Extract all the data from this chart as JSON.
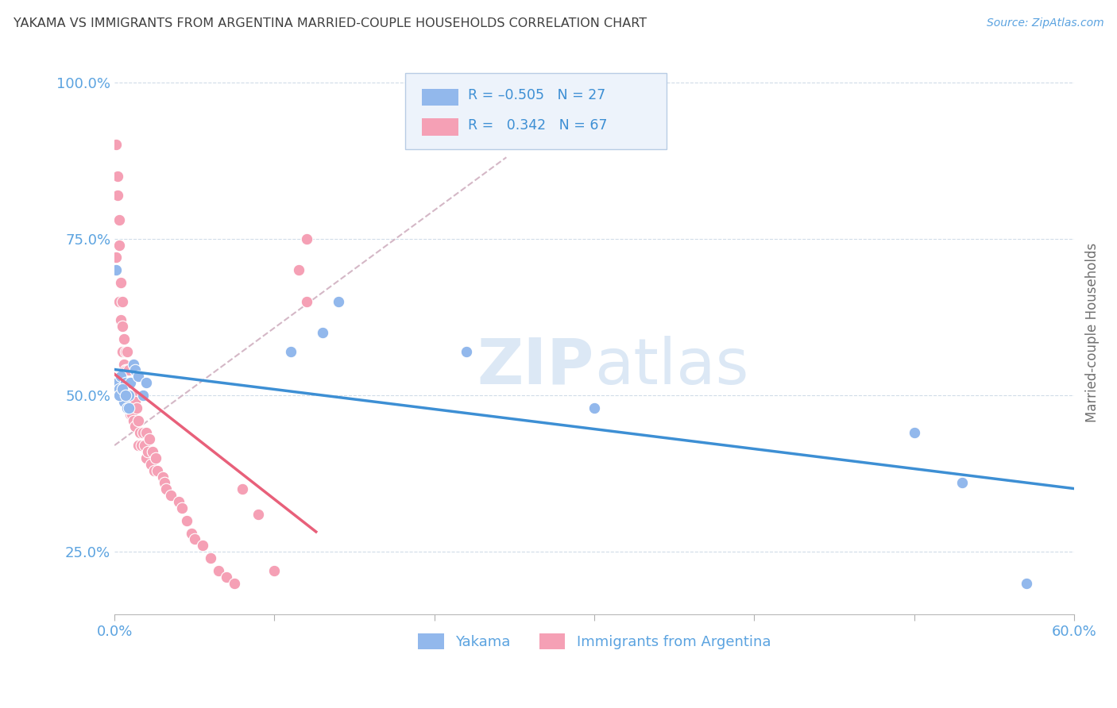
{
  "title": "YAKAMA VS IMMIGRANTS FROM ARGENTINA MARRIED-COUPLE HOUSEHOLDS CORRELATION CHART",
  "source": "Source: ZipAtlas.com",
  "ylabel": "Married-couple Households",
  "xlim": [
    0.0,
    0.6
  ],
  "ylim": [
    0.15,
    1.05
  ],
  "yticks": [
    0.25,
    0.5,
    0.75,
    1.0
  ],
  "ytick_labels": [
    "25.0%",
    "50.0%",
    "75.0%",
    "100.0%"
  ],
  "xticks": [
    0.0,
    0.1,
    0.2,
    0.3,
    0.4,
    0.5,
    0.6
  ],
  "xtick_labels": [
    "0.0%",
    "",
    "",
    "",
    "",
    "",
    "60.0%"
  ],
  "yakama_color": "#92b8ec",
  "argentina_color": "#f5a0b5",
  "yakama_line_color": "#3d8fd4",
  "argentina_line_color": "#e8607a",
  "ref_line_color": "#d0b0c0",
  "tick_color": "#5ba3e0",
  "grid_color": "#d0dce8",
  "title_color": "#404040",
  "watermark_color": "#dce8f5",
  "legend_box_color": "#edf3fb",
  "legend_border_color": "#b8cce4",
  "yakama_x": [
    0.001,
    0.002,
    0.003,
    0.004,
    0.005,
    0.006,
    0.007,
    0.008,
    0.009,
    0.01,
    0.012,
    0.013,
    0.015,
    0.018,
    0.02,
    0.11,
    0.13,
    0.14,
    0.22,
    0.3,
    0.5,
    0.53,
    0.57,
    0.003,
    0.005,
    0.007,
    0.009
  ],
  "yakama_y": [
    0.7,
    0.52,
    0.51,
    0.53,
    0.5,
    0.49,
    0.52,
    0.48,
    0.5,
    0.52,
    0.55,
    0.54,
    0.53,
    0.5,
    0.52,
    0.57,
    0.6,
    0.65,
    0.57,
    0.48,
    0.44,
    0.36,
    0.2,
    0.5,
    0.51,
    0.5,
    0.48
  ],
  "argentina_x": [
    0.001,
    0.001,
    0.002,
    0.002,
    0.003,
    0.003,
    0.003,
    0.004,
    0.004,
    0.005,
    0.005,
    0.005,
    0.006,
    0.006,
    0.006,
    0.007,
    0.007,
    0.007,
    0.008,
    0.008,
    0.008,
    0.009,
    0.009,
    0.01,
    0.01,
    0.01,
    0.011,
    0.011,
    0.012,
    0.012,
    0.013,
    0.013,
    0.014,
    0.015,
    0.015,
    0.016,
    0.017,
    0.018,
    0.019,
    0.02,
    0.02,
    0.021,
    0.022,
    0.023,
    0.024,
    0.025,
    0.026,
    0.027,
    0.03,
    0.031,
    0.032,
    0.035,
    0.04,
    0.042,
    0.045,
    0.048,
    0.05,
    0.055,
    0.06,
    0.065,
    0.07,
    0.075,
    0.08,
    0.09,
    0.1,
    0.115,
    0.12,
    0.12
  ],
  "argentina_y": [
    0.9,
    0.72,
    0.82,
    0.85,
    0.78,
    0.74,
    0.65,
    0.68,
    0.62,
    0.65,
    0.61,
    0.57,
    0.59,
    0.55,
    0.52,
    0.57,
    0.54,
    0.5,
    0.57,
    0.54,
    0.5,
    0.54,
    0.5,
    0.52,
    0.49,
    0.47,
    0.5,
    0.47,
    0.5,
    0.46,
    0.49,
    0.45,
    0.48,
    0.46,
    0.42,
    0.44,
    0.42,
    0.44,
    0.42,
    0.44,
    0.4,
    0.41,
    0.43,
    0.39,
    0.41,
    0.38,
    0.4,
    0.38,
    0.37,
    0.36,
    0.35,
    0.34,
    0.33,
    0.32,
    0.3,
    0.28,
    0.27,
    0.26,
    0.24,
    0.22,
    0.21,
    0.2,
    0.35,
    0.31,
    0.22,
    0.7,
    0.75,
    0.65
  ],
  "ref_line_x": [
    0.0,
    0.245
  ],
  "ref_line_y": [
    0.42,
    0.88
  ]
}
